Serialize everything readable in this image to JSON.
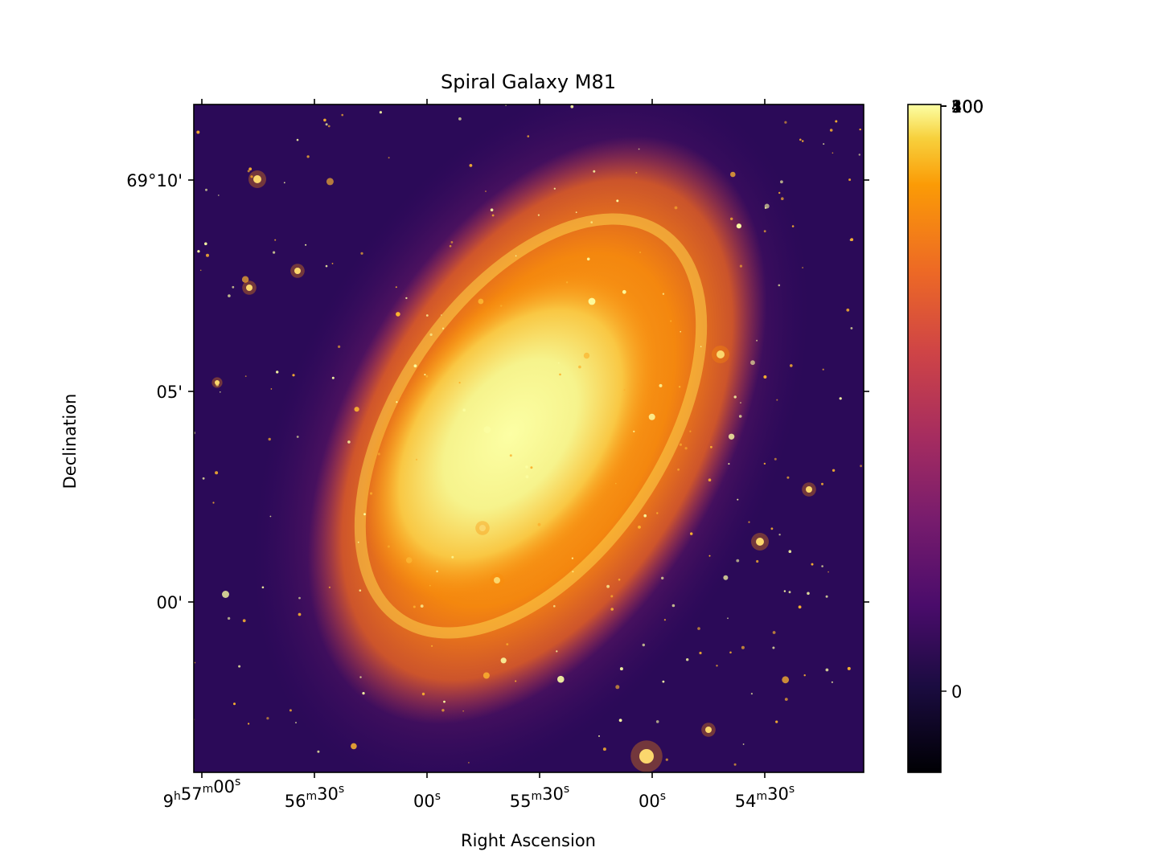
{
  "chart_data": {
    "type": "heatmap",
    "title": "Spiral Galaxy M81",
    "xlabel": "Right Ascension",
    "ylabel": "Declination",
    "colormap": "inferno",
    "x_ticks": [
      {
        "h": "9",
        "m": "57",
        "s": "00"
      },
      {
        "h": "",
        "m": "56",
        "s": "30"
      },
      {
        "h": "",
        "m": "",
        "s": "00"
      },
      {
        "h": "",
        "m": "55",
        "s": "30"
      },
      {
        "h": "",
        "m": "",
        "s": "00"
      },
      {
        "h": "",
        "m": "54",
        "s": "30"
      }
    ],
    "y_ticks": [
      "69°10'",
      "05'",
      "00'"
    ],
    "colorbar_ticks": [
      {
        "label": "0",
        "value": 0
      },
      {
        "label": "100",
        "value": 100
      },
      {
        "label": "200",
        "value": 200
      },
      {
        "label": "300",
        "value": 300
      },
      {
        "label": "400",
        "value": 400
      },
      {
        "label": "500",
        "value": 500
      }
    ],
    "colors": {
      "background": "#2b0a58",
      "halo": "#c1326a",
      "arms": "#f98c0a",
      "core": "#fcffa4"
    }
  }
}
